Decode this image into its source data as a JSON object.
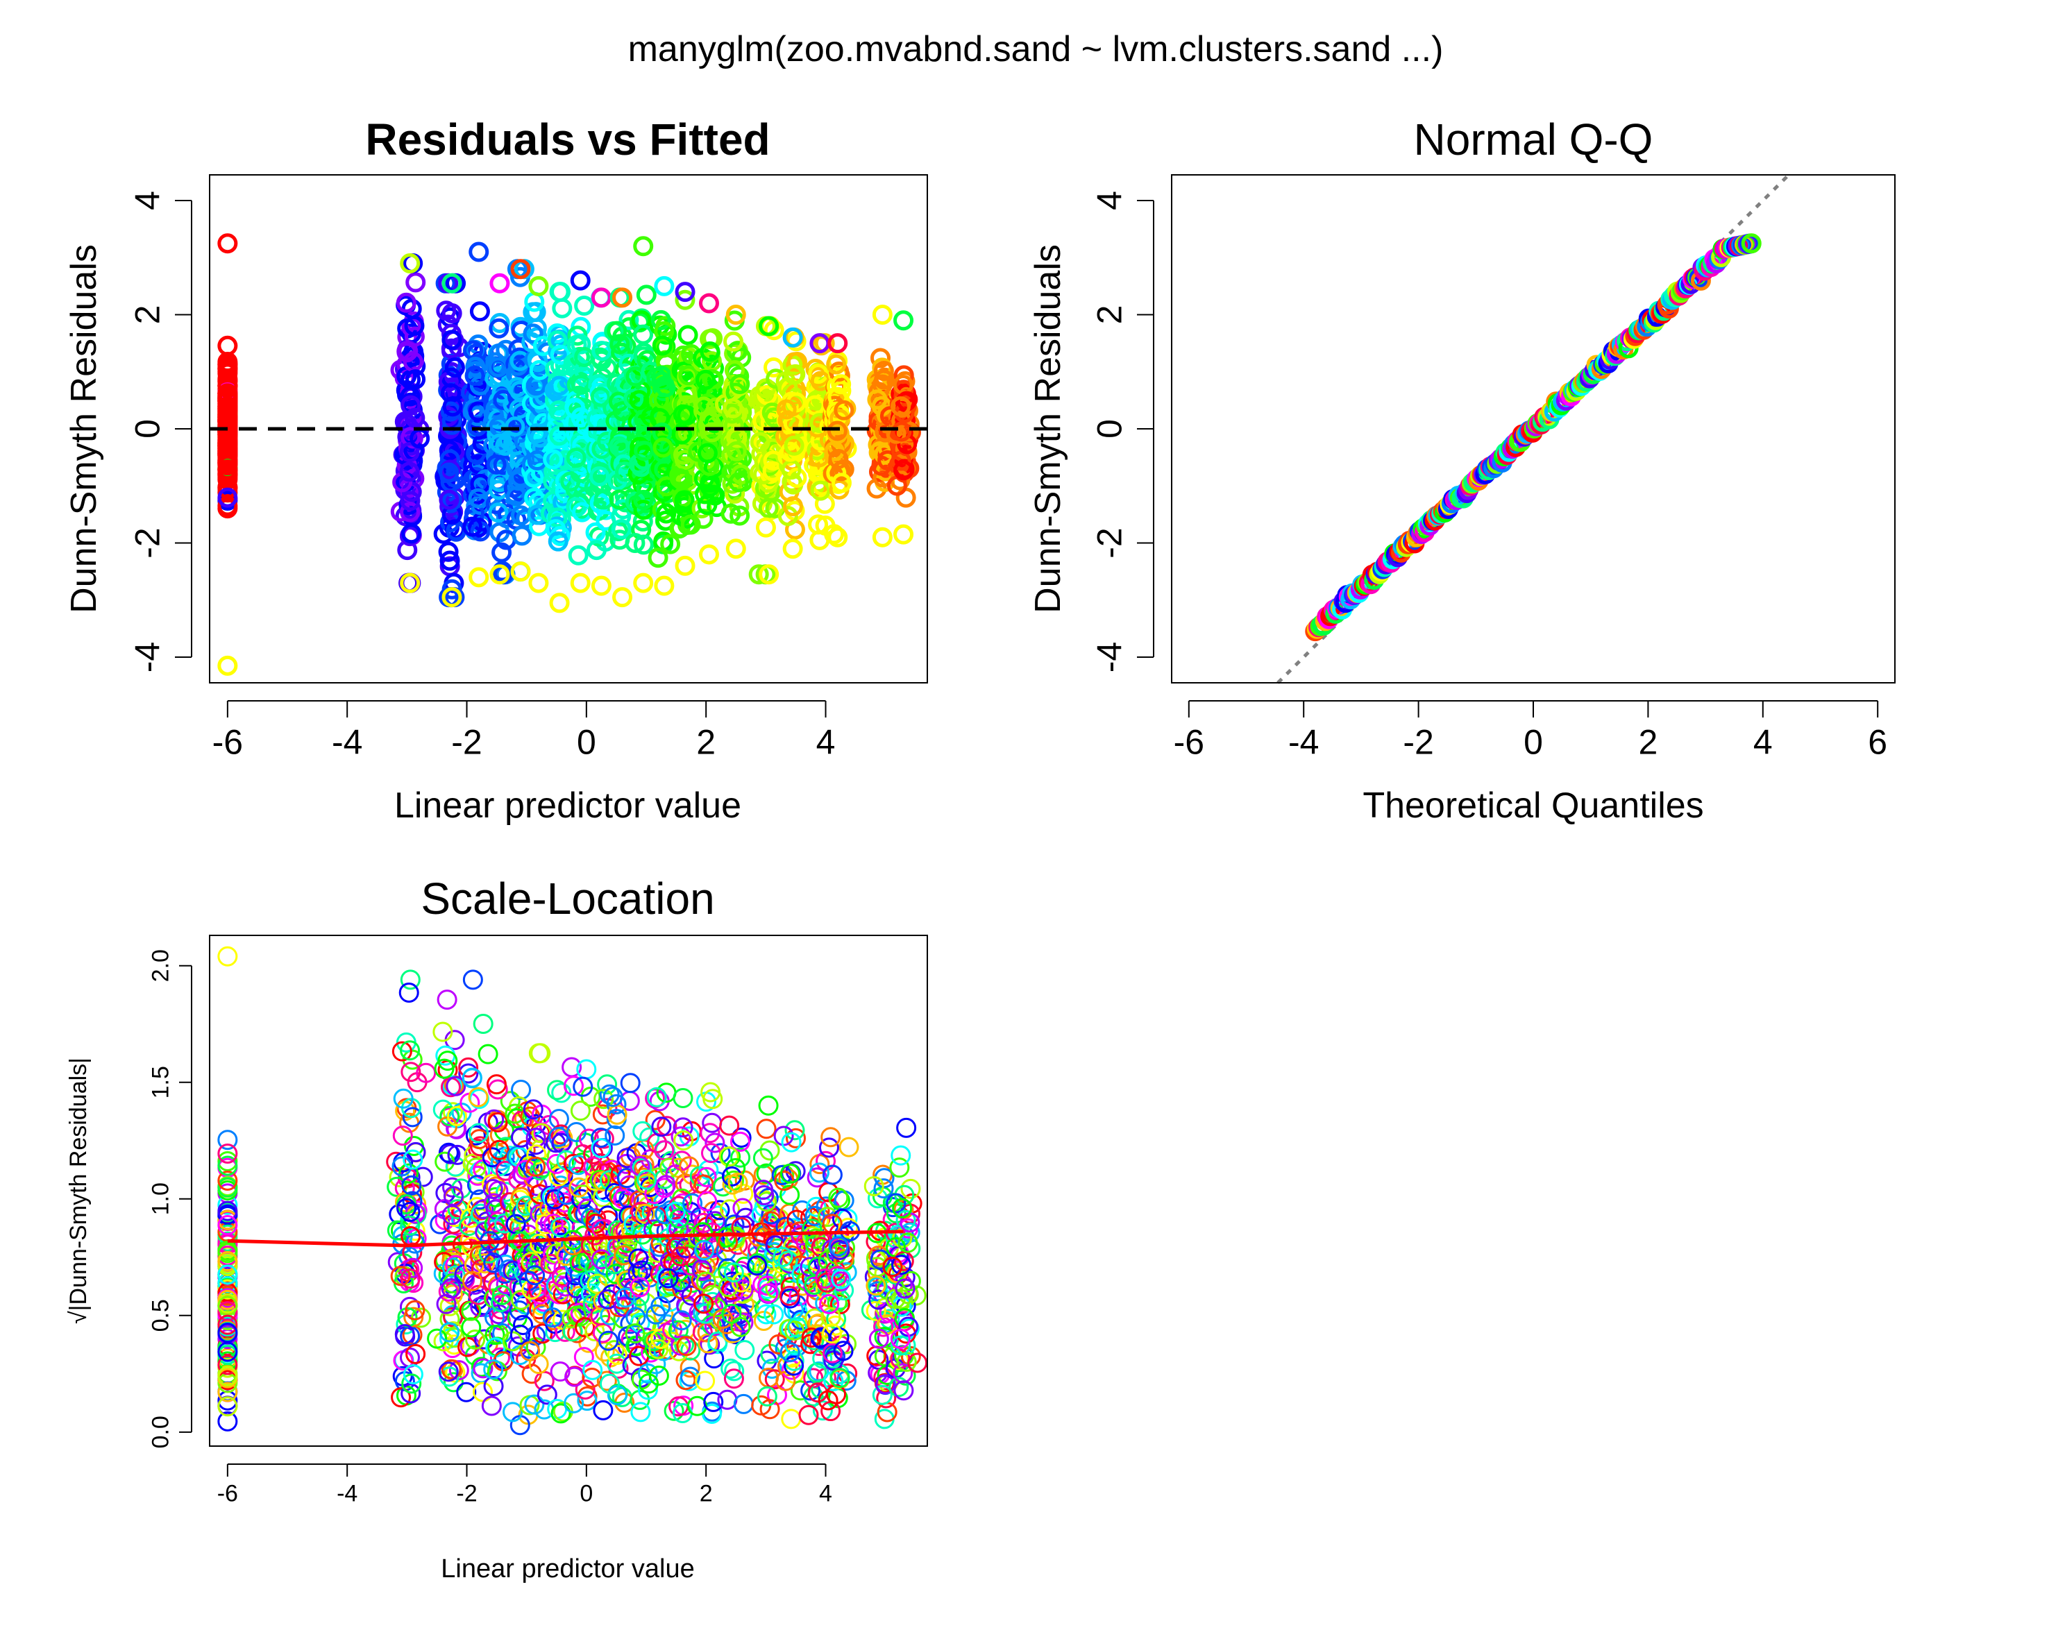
{
  "figure": {
    "title": "manyglm(zoo.mvabnd.sand ~ lvm.clusters.sand ...)"
  },
  "palette": [
    "#ff0000",
    "#ff4000",
    "#ff8000",
    "#ffbf00",
    "#ffff00",
    "#bfff00",
    "#80ff00",
    "#40ff00",
    "#00ff00",
    "#00ff40",
    "#00ff80",
    "#00ffbf",
    "#00ffff",
    "#00bfff",
    "#0080ff",
    "#0040ff",
    "#0000ff",
    "#4000ff",
    "#8000ff",
    "#bf00ff",
    "#ff00ff",
    "#ff00bf",
    "#ff0080",
    "#ff0040"
  ],
  "chart_data": [
    {
      "id": "resid",
      "type": "scatter",
      "title": "Residuals vs Fitted",
      "xlabel": "Linear predictor value",
      "ylabel": "Dunn-Smyth Residuals",
      "xlim": [
        -6.3,
        5.7
      ],
      "ylim": [
        -4.45,
        4.45
      ],
      "xticks": [
        -6,
        -4,
        -2,
        0,
        2,
        4
      ],
      "yticks": [
        -4,
        -2,
        0,
        2,
        4
      ],
      "grid": false,
      "reference_line": {
        "y": 0,
        "style": "dashed",
        "color": "#000000"
      },
      "x_columns": [
        -6.0,
        -2.95,
        -2.25,
        -1.8,
        -1.45,
        -1.1,
        -0.8,
        -0.45,
        -0.1,
        0.25,
        0.6,
        0.95,
        1.3,
        1.65,
        2.05,
        2.5,
        3.05,
        3.45,
        3.9,
        4.2,
        4.95,
        5.3
      ],
      "column_spread": [
        1.2,
        2.6,
        2.6,
        2.3,
        2.2,
        2.1,
        2.0,
        2.0,
        2.0,
        2.0,
        2.0,
        1.9,
        1.9,
        1.8,
        1.7,
        1.6,
        1.5,
        1.4,
        1.3,
        1.2,
        1.1,
        1.1
      ],
      "column_range": [
        [
          -4.15,
          3.25
        ],
        [
          -2.7,
          2.9
        ],
        [
          -2.95,
          2.55
        ],
        [
          -2.6,
          3.1
        ],
        [
          -2.55,
          2.55
        ],
        [
          -2.5,
          2.8
        ],
        [
          -2.7,
          2.5
        ],
        [
          -3.05,
          2.4
        ],
        [
          -2.7,
          2.6
        ],
        [
          -2.75,
          2.3
        ],
        [
          -2.95,
          2.3
        ],
        [
          -2.7,
          3.2
        ],
        [
          -2.75,
          2.5
        ],
        [
          -2.4,
          2.4
        ],
        [
          -2.2,
          2.2
        ],
        [
          -2.1,
          2.0
        ],
        [
          -2.55,
          1.8
        ],
        [
          -2.1,
          1.6
        ],
        [
          -1.95,
          1.5
        ],
        [
          -1.9,
          1.5
        ],
        [
          -1.9,
          2.0
        ],
        [
          -1.85,
          1.9
        ]
      ]
    },
    {
      "id": "qq",
      "type": "scatter",
      "title": "Normal Q-Q",
      "xlabel": "Theoretical Quantiles",
      "ylabel": "Dunn-Smyth Residuals",
      "xlim": [
        -6.3,
        6.3
      ],
      "ylim": [
        -4.45,
        4.45
      ],
      "xticks": [
        -6,
        -4,
        -2,
        0,
        2,
        4,
        6
      ],
      "yticks": [
        -4,
        -2,
        0,
        2,
        4
      ],
      "grid": false,
      "reference_line": {
        "intercept": 0,
        "slope": 1,
        "style": "dotted",
        "color": "#808080"
      },
      "points_range": {
        "x": [
          -3.8,
          3.8
        ],
        "y": [
          -4.15,
          3.25
        ]
      }
    },
    {
      "id": "scale",
      "type": "scatter",
      "title": "Scale-Location",
      "xlabel": "Linear predictor value",
      "ylabel": "√|Dunn-Smyth Residuals|",
      "xlim": [
        -6.3,
        5.7
      ],
      "ylim": [
        -0.06,
        2.13
      ],
      "xticks": [
        -6,
        -4,
        -2,
        0,
        2,
        4
      ],
      "yticks": [
        0.0,
        0.5,
        1.0,
        1.5,
        2.0
      ],
      "yticklabels": [
        "0.0",
        "0.5",
        "1.0",
        "1.5",
        "2.0"
      ],
      "grid": false,
      "smoother": {
        "color": "#ff0000",
        "x": [
          -6.0,
          -3.0,
          -1.0,
          1.0,
          3.0,
          5.3
        ],
        "y": [
          0.82,
          0.8,
          0.82,
          0.84,
          0.85,
          0.86
        ]
      },
      "x_columns": [
        -6.0,
        -2.95,
        -2.25,
        -1.8,
        -1.45,
        -1.1,
        -0.8,
        -0.45,
        -0.1,
        0.25,
        0.6,
        0.95,
        1.3,
        1.65,
        2.05,
        2.5,
        3.05,
        3.45,
        3.9,
        4.2,
        4.95,
        5.3
      ],
      "column_spread": [
        1.2,
        2.6,
        2.6,
        2.3,
        2.2,
        2.1,
        2.0,
        2.0,
        2.0,
        2.0,
        2.0,
        1.9,
        1.9,
        1.8,
        1.7,
        1.6,
        1.5,
        1.4,
        1.3,
        1.2,
        1.1,
        1.1
      ],
      "y_range": [
        0.02,
        2.04
      ]
    }
  ]
}
